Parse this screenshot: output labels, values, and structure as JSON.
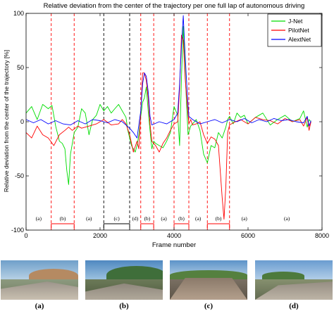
{
  "chart_data": {
    "type": "line",
    "title": "Relative deviation from the center of the trajectory per one full lap of autonomous driving",
    "xlabel": "Frame number",
    "ylabel": "Relative deviation from the center of the trajectory [%]",
    "xlim": [
      0,
      8000
    ],
    "ylim": [
      -100,
      100
    ],
    "xticks": [
      "0",
      "2000",
      "4000",
      "6000",
      "8000"
    ],
    "yticks": [
      "100",
      "50",
      "0",
      "-50",
      "-100"
    ],
    "grid": false,
    "legend": "top-right",
    "series": [
      {
        "name": "J-Net",
        "color": "#00dd00",
        "x": [
          0,
          150,
          300,
          450,
          600,
          700,
          800,
          900,
          980,
          1050,
          1100,
          1150,
          1200,
          1300,
          1400,
          1500,
          1600,
          1700,
          1800,
          1900,
          2000,
          2100,
          2200,
          2300,
          2400,
          2500,
          2600,
          2700,
          2750,
          2850,
          2950,
          3000,
          3050,
          3100,
          3150,
          3200,
          3250,
          3300,
          3350,
          3400,
          3450,
          3500,
          3600,
          3700,
          3800,
          3900,
          4000,
          4100,
          4150,
          4200,
          4250,
          4280,
          4320,
          4380,
          4450,
          4500,
          4600,
          4700,
          4800,
          4900,
          5000,
          5100,
          5200,
          5300,
          5400,
          5450,
          5500,
          5600,
          5700,
          5800,
          5900,
          6000,
          6200,
          6400,
          6600,
          6800,
          7000,
          7200,
          7400,
          7500,
          7600,
          7650,
          7700
        ],
        "y": [
          8,
          14,
          2,
          16,
          12,
          15,
          -4,
          -18,
          -20,
          -25,
          -45,
          -58,
          -30,
          -10,
          -5,
          12,
          8,
          -12,
          2,
          6,
          16,
          10,
          14,
          8,
          12,
          16,
          10,
          4,
          -8,
          -22,
          -28,
          -22,
          -12,
          5,
          18,
          22,
          32,
          10,
          -8,
          -25,
          -18,
          -20,
          -22,
          -24,
          -18,
          -10,
          14,
          6,
          -22,
          40,
          88,
          62,
          30,
          -12,
          -4,
          -2,
          2,
          -8,
          -30,
          -38,
          -22,
          -24,
          -10,
          -15,
          -5,
          2,
          5,
          -2,
          8,
          4,
          6,
          -2,
          4,
          8,
          -3,
          2,
          6,
          0,
          3,
          10,
          -5,
          2,
          0
        ]
      },
      {
        "name": "PilotNet",
        "color": "#ff0000",
        "x": [
          0,
          150,
          300,
          450,
          600,
          750,
          900,
          1050,
          1150,
          1250,
          1400,
          1500,
          1700,
          1900,
          2100,
          2300,
          2500,
          2600,
          2700,
          2800,
          2900,
          3000,
          3050,
          3100,
          3150,
          3200,
          3250,
          3300,
          3350,
          3400,
          3500,
          3600,
          3700,
          3800,
          3900,
          4000,
          4100,
          4150,
          4200,
          4250,
          4300,
          4350,
          4400,
          4450,
          4500,
          4600,
          4700,
          4800,
          4900,
          5000,
          5100,
          5200,
          5300,
          5350,
          5400,
          5450,
          5500,
          5600,
          5800,
          6000,
          6200,
          6400,
          6600,
          6800,
          7000,
          7200,
          7400,
          7500,
          7600,
          7650,
          7700
        ],
        "y": [
          -10,
          -15,
          -4,
          -12,
          -15,
          -22,
          -12,
          -8,
          -5,
          -8,
          -4,
          -6,
          -4,
          -2,
          2,
          -3,
          -2,
          2,
          -2,
          -12,
          -28,
          -18,
          -25,
          10,
          45,
          45,
          38,
          22,
          -2,
          -18,
          -22,
          -28,
          -20,
          -15,
          -8,
          -2,
          0,
          30,
          80,
          75,
          40,
          18,
          -2,
          2,
          -3,
          -2,
          0,
          -12,
          -20,
          -14,
          -16,
          -22,
          -70,
          -90,
          -60,
          -10,
          -3,
          -1,
          2,
          -2,
          4,
          2,
          1,
          -2,
          3,
          0,
          2,
          -4,
          4,
          -8,
          0
        ]
      },
      {
        "name": "AlextNet",
        "color": "#0000ff",
        "x": [
          0,
          200,
          400,
          600,
          800,
          1000,
          1200,
          1400,
          1600,
          1800,
          2000,
          2200,
          2400,
          2600,
          2800,
          2900,
          3000,
          3100,
          3150,
          3200,
          3250,
          3300,
          3350,
          3400,
          3600,
          3800,
          4000,
          4100,
          4150,
          4200,
          4250,
          4280,
          4350,
          4400,
          4500,
          4700,
          4900,
          5100,
          5300,
          5500,
          5700,
          5900,
          6100,
          6300,
          6500,
          6700,
          6900,
          7100,
          7300,
          7500,
          7600,
          7650,
          7700
        ],
        "y": [
          2,
          -1,
          2,
          -2,
          1,
          -2,
          -3,
          1,
          -2,
          2,
          1,
          -1,
          2,
          0,
          -6,
          -10,
          -15,
          10,
          35,
          45,
          42,
          28,
          5,
          -3,
          0,
          -2,
          2,
          8,
          35,
          70,
          98,
          75,
          30,
          5,
          2,
          -2,
          0,
          2,
          -1,
          2,
          0,
          3,
          -1,
          2,
          0,
          3,
          1,
          2,
          0,
          -1,
          5,
          -4,
          1
        ]
      }
    ],
    "regions": [
      {
        "label": "(a)",
        "x0": 0,
        "x1": 680,
        "line_color": "#ff0000",
        "bracket": false
      },
      {
        "label": "(b)",
        "x0": 680,
        "x1": 1300,
        "line_color": "#ff0000",
        "bracket": true
      },
      {
        "label": "(a)",
        "x0": 1300,
        "x1": 2100,
        "line_color": "#000000",
        "bracket": false
      },
      {
        "label": "(c)",
        "x0": 2100,
        "x1": 2800,
        "line_color": "#000000",
        "bracket": true
      },
      {
        "label": "(d)",
        "x0": 2800,
        "x1": 3100,
        "line_color": "#ff0000",
        "bracket": false
      },
      {
        "label": "(b)",
        "x0": 3100,
        "x1": 3450,
        "line_color": "#ff0000",
        "bracket": true
      },
      {
        "label": "(a)",
        "x0": 3450,
        "x1": 4000,
        "line_color": "#ff0000",
        "bracket": false
      },
      {
        "label": "(b)",
        "x0": 4000,
        "x1": 4400,
        "line_color": "#ff0000",
        "bracket": true
      },
      {
        "label": "(a)",
        "x0": 4400,
        "x1": 4900,
        "line_color": "#ff0000",
        "bracket": false
      },
      {
        "label": "(b)",
        "x0": 4900,
        "x1": 5500,
        "line_color": "#ff0000",
        "bracket": true
      },
      {
        "label": "(a)",
        "x0": 5500,
        "x1": 6300,
        "line_color": "#ff0000",
        "bracket": false
      },
      {
        "label": "(a)",
        "x0": 6300,
        "x1": 7800,
        "line_color": null,
        "bracket": false
      }
    ],
    "boundaries": [
      {
        "x": 680,
        "color": "#ff0000"
      },
      {
        "x": 1300,
        "color": "#ff0000"
      },
      {
        "x": 2100,
        "color": "#000000"
      },
      {
        "x": 2800,
        "color": "#000000"
      },
      {
        "x": 3100,
        "color": "#ff0000"
      },
      {
        "x": 3450,
        "color": "#ff0000"
      },
      {
        "x": 4000,
        "color": "#ff0000"
      },
      {
        "x": 4400,
        "color": "#ff0000"
      },
      {
        "x": 4900,
        "color": "#ff0000"
      },
      {
        "x": 5500,
        "color": "#ff0000"
      }
    ]
  },
  "thumbnails": [
    {
      "letter": "(a)"
    },
    {
      "letter": "(b)"
    },
    {
      "letter": "(c)"
    },
    {
      "letter": "(d)"
    }
  ]
}
